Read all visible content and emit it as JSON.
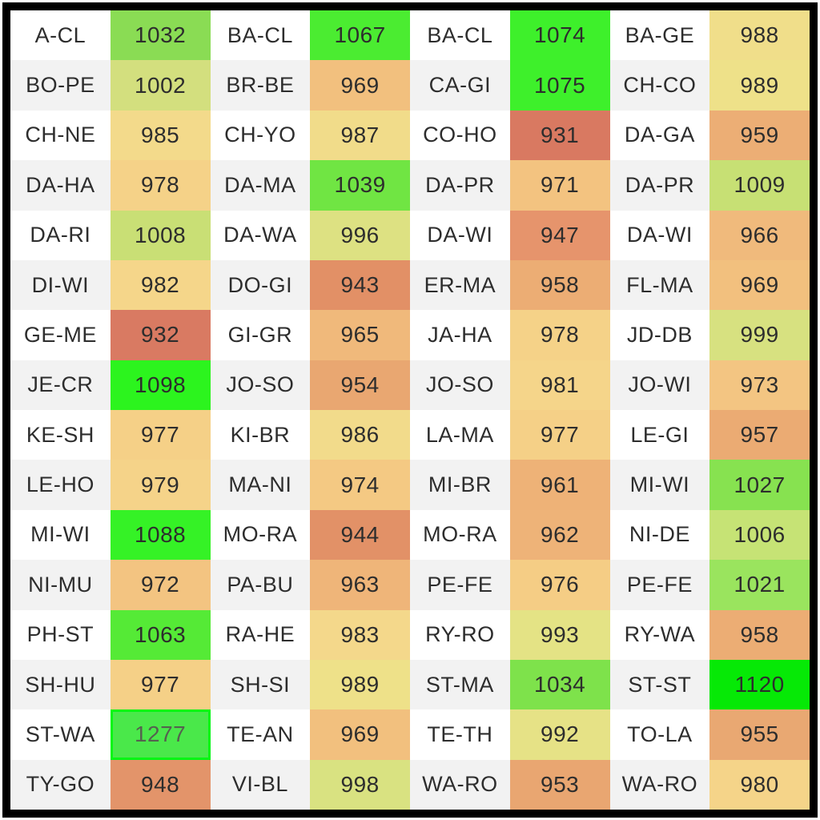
{
  "colors": {
    "frame": "#000000",
    "outer_margin": "#ffffff",
    "text": "#2d2d2d",
    "stripe_odd": "#ffffff",
    "stripe_even": "#f2f2f2",
    "outlier_text": "#55624f",
    "outlier_border": "#00f613"
  },
  "chart_data": {
    "type": "heatmap",
    "title": "",
    "layout": {
      "rows": 16,
      "pairs_per_row": 4,
      "value_range_observed": [
        931,
        1277
      ],
      "color_scale": "red (~931) through orange/tan (~945-975) and yellow (~977-990) to yellow-green (~992-1009) and green (1021+), purest green near 1120; outlier 1277 shown as medium green with gray text and bright green border",
      "row_striping": "label cells alternate white / light gray by row; value cells fully colored"
    },
    "cells": [
      {
        "pair": "A-CL",
        "value": "1032",
        "color": "#8adc54"
      },
      {
        "pair": "BA-CL",
        "value": "1067",
        "color": "#4bec31"
      },
      {
        "pair": "BA-CL",
        "value": "1074",
        "color": "#3ef02b"
      },
      {
        "pair": "BA-GE",
        "value": "988",
        "color": "#f0de8a"
      },
      {
        "pair": "BO-PE",
        "value": "1002",
        "color": "#d3df7e"
      },
      {
        "pair": "BR-BE",
        "value": "969",
        "color": "#f2c07e"
      },
      {
        "pair": "CA-GI",
        "value": "1075",
        "color": "#3ef02b"
      },
      {
        "pair": "CH-CO",
        "value": "989",
        "color": "#eee189"
      },
      {
        "pair": "CH-NE",
        "value": "985",
        "color": "#f3da8b"
      },
      {
        "pair": "CH-YO",
        "value": "987",
        "color": "#f1dc8a"
      },
      {
        "pair": "CO-HO",
        "value": "931",
        "color": "#d97961"
      },
      {
        "pair": "DA-GA",
        "value": "959",
        "color": "#ecae75"
      },
      {
        "pair": "DA-HA",
        "value": "978",
        "color": "#f5d288"
      },
      {
        "pair": "DA-MA",
        "value": "1039",
        "color": "#70e543"
      },
      {
        "pair": "DA-PR",
        "value": "971",
        "color": "#f3c380"
      },
      {
        "pair": "DA-PR",
        "value": "1009",
        "color": "#c7e074"
      },
      {
        "pair": "DA-RI",
        "value": "1008",
        "color": "#c9df75"
      },
      {
        "pair": "DA-WA",
        "value": "996",
        "color": "#dde182"
      },
      {
        "pair": "DA-WI",
        "value": "947",
        "color": "#e6946c"
      },
      {
        "pair": "DA-WI",
        "value": "966",
        "color": "#f0ba7c"
      },
      {
        "pair": "DI-WI",
        "value": "982",
        "color": "#f5d68a"
      },
      {
        "pair": "DO-GI",
        "value": "943",
        "color": "#e29066"
      },
      {
        "pair": "ER-MA",
        "value": "958",
        "color": "#ecad74"
      },
      {
        "pair": "FL-MA",
        "value": "969",
        "color": "#f2c07e"
      },
      {
        "pair": "GE-ME",
        "value": "932",
        "color": "#d97a62"
      },
      {
        "pair": "GI-GR",
        "value": "965",
        "color": "#f0b97b"
      },
      {
        "pair": "JA-HA",
        "value": "978",
        "color": "#f5d288"
      },
      {
        "pair": "JD-DB",
        "value": "999",
        "color": "#d7e180"
      },
      {
        "pair": "JE-CR",
        "value": "1098",
        "color": "#2cf41e"
      },
      {
        "pair": "JO-SO",
        "value": "954",
        "color": "#e9a771"
      },
      {
        "pair": "JO-SO",
        "value": "981",
        "color": "#f5d58a"
      },
      {
        "pair": "JO-WI",
        "value": "973",
        "color": "#f3c582"
      },
      {
        "pair": "KE-SH",
        "value": "977",
        "color": "#f5d087"
      },
      {
        "pair": "KI-BR",
        "value": "986",
        "color": "#f2db8b"
      },
      {
        "pair": "LA-MA",
        "value": "977",
        "color": "#f5d087"
      },
      {
        "pair": "LE-GI",
        "value": "957",
        "color": "#ebab73"
      },
      {
        "pair": "LE-HO",
        "value": "979",
        "color": "#f5d389"
      },
      {
        "pair": "MA-NI",
        "value": "974",
        "color": "#f4c983"
      },
      {
        "pair": "MI-BR",
        "value": "961",
        "color": "#eeb277"
      },
      {
        "pair": "MI-WI",
        "value": "1027",
        "color": "#87e250"
      },
      {
        "pair": "MI-WI",
        "value": "1088",
        "color": "#35f226"
      },
      {
        "pair": "MO-RA",
        "value": "944",
        "color": "#e29167"
      },
      {
        "pair": "MO-RA",
        "value": "962",
        "color": "#eeb378"
      },
      {
        "pair": "NI-DE",
        "value": "1006",
        "color": "#c6e375"
      },
      {
        "pair": "NI-MU",
        "value": "972",
        "color": "#f3c481"
      },
      {
        "pair": "PA-BU",
        "value": "963",
        "color": "#efb579"
      },
      {
        "pair": "PE-FE",
        "value": "976",
        "color": "#f5cd85"
      },
      {
        "pair": "PE-FE",
        "value": "1021",
        "color": "#9ae45e"
      },
      {
        "pair": "PH-ST",
        "value": "1063",
        "color": "#55ea36"
      },
      {
        "pair": "RA-HE",
        "value": "983",
        "color": "#f4d88b"
      },
      {
        "pair": "RY-RO",
        "value": "993",
        "color": "#e4e385"
      },
      {
        "pair": "RY-WA",
        "value": "958",
        "color": "#ecad74"
      },
      {
        "pair": "SH-HU",
        "value": "977",
        "color": "#f5d087"
      },
      {
        "pair": "SH-SI",
        "value": "989",
        "color": "#eee189"
      },
      {
        "pair": "ST-MA",
        "value": "1034",
        "color": "#7ee24b"
      },
      {
        "pair": "ST-ST",
        "value": "1120",
        "color": "#06e906"
      },
      {
        "pair": "ST-WA",
        "value": "1277",
        "color": "#4ae84a",
        "text_color": "#55624f",
        "border_color": "#00f613"
      },
      {
        "pair": "TE-AN",
        "value": "969",
        "color": "#f2c07e"
      },
      {
        "pair": "TE-TH",
        "value": "992",
        "color": "#e6e286"
      },
      {
        "pair": "TO-LA",
        "value": "955",
        "color": "#e9a872"
      },
      {
        "pair": "TY-GO",
        "value": "948",
        "color": "#e3946a"
      },
      {
        "pair": "VI-BL",
        "value": "998",
        "color": "#d9e281"
      },
      {
        "pair": "WA-RO",
        "value": "953",
        "color": "#e9a671"
      },
      {
        "pair": "WA-RO",
        "value": "980",
        "color": "#f5d489"
      }
    ]
  }
}
